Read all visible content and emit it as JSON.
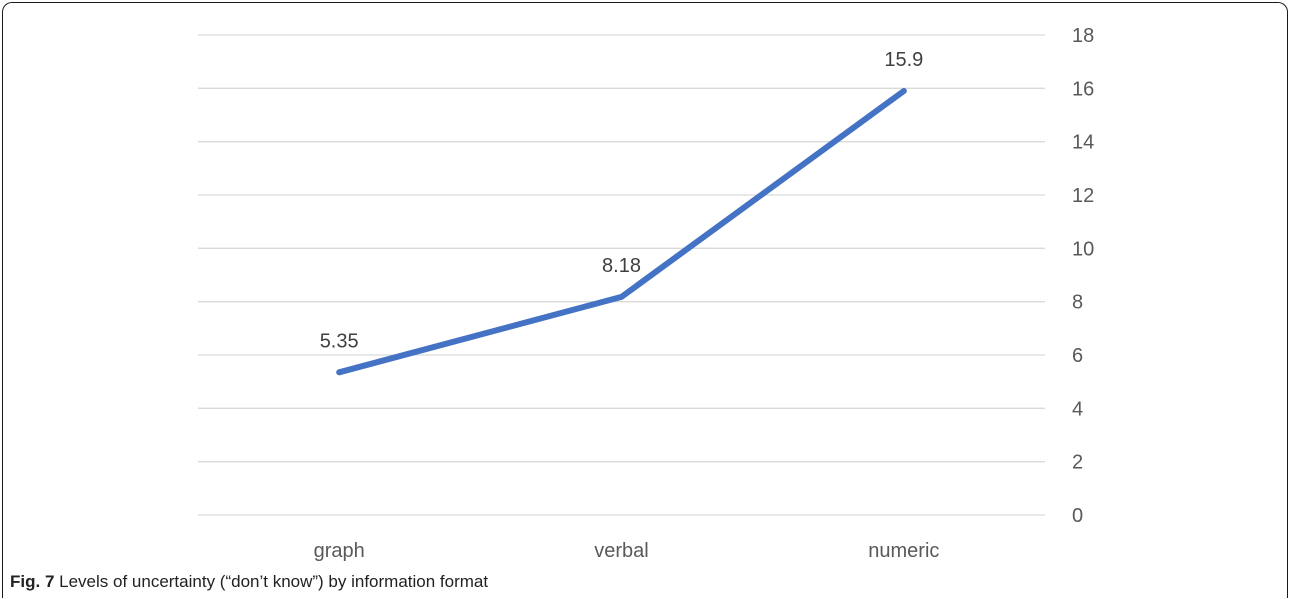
{
  "caption": {
    "label": "Fig. 7",
    "text": "Levels of uncertainty (“don’t know”) by information format"
  },
  "colors": {
    "line": "#4472c4",
    "gridline": "#d9d9d9",
    "tick_text": "#595959"
  },
  "chart_data": {
    "type": "line",
    "categories": [
      "graph",
      "verbal",
      "numeric"
    ],
    "series": [
      {
        "values": [
          5.35,
          8.18,
          15.9
        ]
      }
    ],
    "data_labels": [
      "5.35",
      "8.18",
      "15.9"
    ],
    "ylim": [
      0,
      18
    ],
    "yticks": [
      0,
      2,
      4,
      6,
      8,
      10,
      12,
      14,
      16,
      18
    ],
    "y_axis_position": "right",
    "grid": true,
    "legend": "none"
  }
}
